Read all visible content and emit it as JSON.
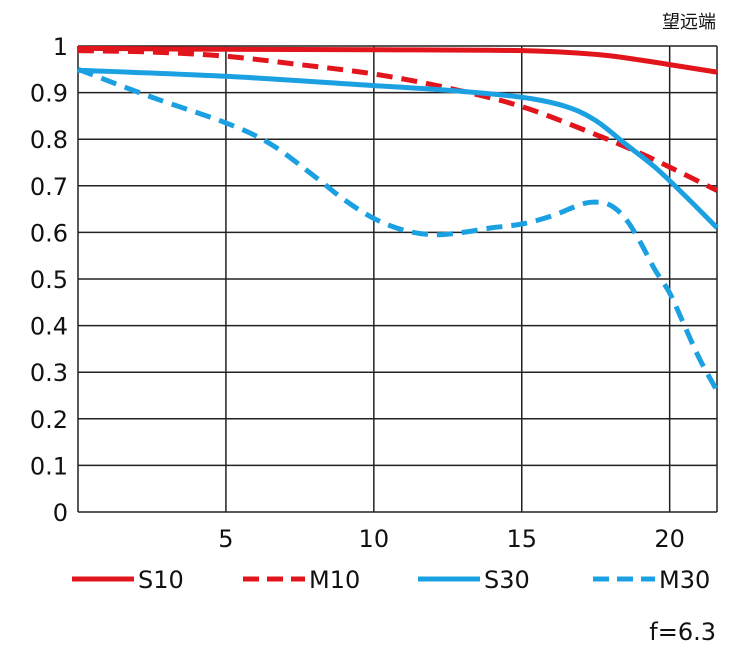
{
  "chart_data": {
    "type": "line",
    "title": "望远端",
    "footnote": "f=6.3",
    "xlabel": "",
    "ylabel": "",
    "xlim": [
      0,
      21.6
    ],
    "ylim": [
      0,
      1
    ],
    "grid": true,
    "legend_placement": "bottom",
    "xticks": [
      5,
      10,
      15,
      20
    ],
    "xtick_labels": [
      "5",
      "10",
      "15",
      "20"
    ],
    "yticks": [
      0,
      0.1,
      0.2,
      0.3,
      0.4,
      0.5,
      0.6,
      0.7,
      0.8,
      0.9,
      1
    ],
    "ytick_labels": [
      "0",
      "0.1",
      "0.2",
      "0.3",
      "0.4",
      "0.5",
      "0.6",
      "0.7",
      "0.8",
      "0.9",
      "1"
    ],
    "series": [
      {
        "name": "S10",
        "color": "#e2141c",
        "dash": false,
        "x": [
          0,
          5,
          10,
          15,
          17.5,
          19,
          20,
          21.6
        ],
        "y": [
          0.995,
          0.993,
          0.992,
          0.99,
          0.982,
          0.97,
          0.96,
          0.944
        ]
      },
      {
        "name": "M10",
        "color": "#e2141c",
        "dash": true,
        "x": [
          0,
          2.5,
          5,
          7.5,
          10,
          12.5,
          15,
          17.5,
          19,
          20,
          21.6
        ],
        "y": [
          0.99,
          0.987,
          0.978,
          0.96,
          0.94,
          0.91,
          0.87,
          0.81,
          0.77,
          0.74,
          0.69
        ]
      },
      {
        "name": "S30",
        "color": "#1ba1e2",
        "dash": false,
        "x": [
          0,
          5,
          10,
          12.5,
          15,
          16.5,
          17.5,
          18.5,
          19.5,
          20.5,
          21.6
        ],
        "y": [
          0.948,
          0.935,
          0.915,
          0.905,
          0.89,
          0.87,
          0.84,
          0.79,
          0.74,
          0.68,
          0.61
        ]
      },
      {
        "name": "M30",
        "color": "#1ba1e2",
        "dash": true,
        "x": [
          0,
          2.5,
          5,
          6.5,
          8,
          9,
          10,
          11,
          12,
          13,
          14,
          15,
          16,
          17,
          17.5,
          18,
          18.5,
          19,
          19.5,
          20,
          20.5,
          21,
          21.6
        ],
        "y": [
          0.95,
          0.89,
          0.835,
          0.79,
          0.72,
          0.67,
          0.63,
          0.605,
          0.595,
          0.6,
          0.61,
          0.618,
          0.635,
          0.66,
          0.665,
          0.658,
          0.63,
          0.58,
          0.52,
          0.47,
          0.4,
          0.33,
          0.26
        ]
      }
    ]
  }
}
